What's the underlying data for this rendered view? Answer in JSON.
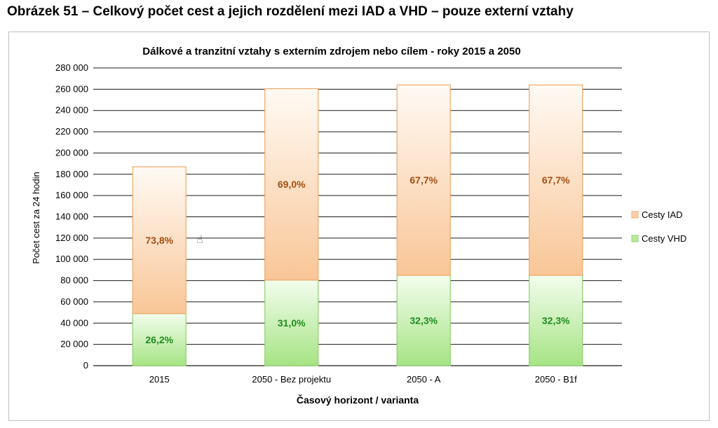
{
  "figure_caption": "Obrázek 51 – Celkový počet cest a jejich rozdělení mezi IAD a VHD – pouze externí vztahy",
  "chart_data": {
    "type": "bar",
    "stacked": true,
    "title": "Dálkové a tranzitní vztahy s externím zdrojem nebo cílem - roky 2015 a 2050",
    "xlabel": "Časový horizont / varianta",
    "ylabel": "Počet cest za 24 hodin",
    "ylim": [
      0,
      280000
    ],
    "yticks": [
      0,
      20000,
      40000,
      60000,
      80000,
      100000,
      120000,
      140000,
      160000,
      180000,
      200000,
      220000,
      240000,
      260000,
      280000
    ],
    "ytick_labels": [
      "0",
      "20 000",
      "40 000",
      "60 000",
      "80 000",
      "100 000",
      "120 000",
      "140 000",
      "160 000",
      "180 000",
      "200 000",
      "220 000",
      "240 000",
      "260 000",
      "280 000"
    ],
    "categories": [
      "2015",
      "2050 - Bez projektu",
      "2050 - A",
      "2050 - B1f"
    ],
    "series": [
      {
        "name": "Cesty VHD",
        "values": [
          49000,
          80500,
          85000,
          85000
        ],
        "labels": [
          "26,2%",
          "31,0%",
          "32,3%",
          "32,3%"
        ],
        "color": "#b8ec9c",
        "label_color": "#1e8c1e"
      },
      {
        "name": "Cesty IAD",
        "values": [
          138000,
          180000,
          179000,
          179000
        ],
        "labels": [
          "73,8%",
          "69,0%",
          "67,7%",
          "67,7%"
        ],
        "color": "#fbd2ad",
        "label_color": "#a34e12"
      }
    ],
    "legend": {
      "position": "right",
      "entries": [
        "Cesty IAD",
        "Cesty VHD"
      ]
    },
    "grid": true
  }
}
